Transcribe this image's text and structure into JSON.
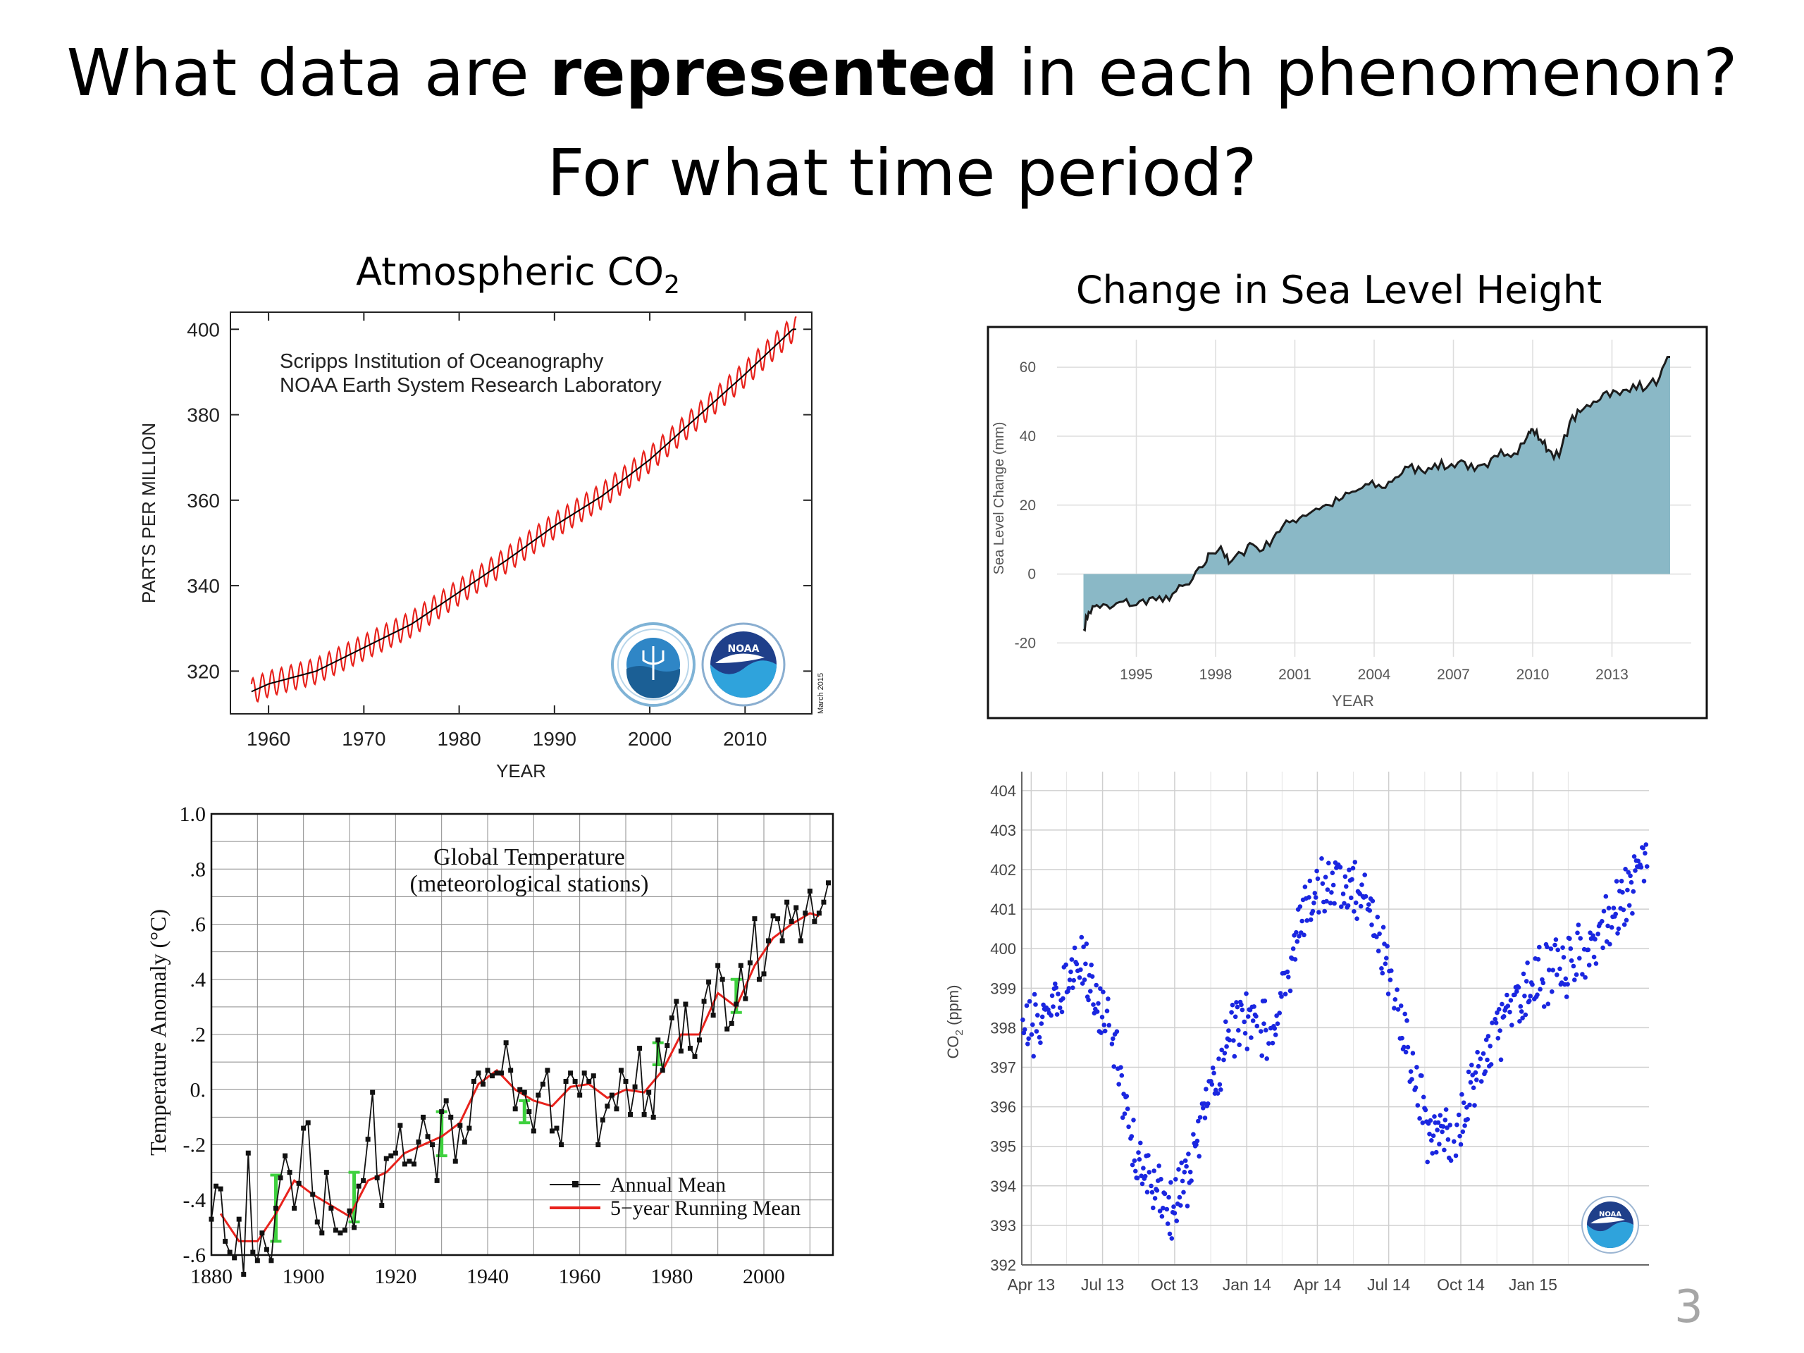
{
  "slide": {
    "title_line1_pre": "What data are ",
    "title_line1_bold": "represented",
    "title_line1_post": " in each phenomenon?",
    "title_line2": "For what time period?",
    "page_number": "3"
  },
  "chart_data": [
    {
      "id": "co2-keeling",
      "type": "line",
      "title": "Atmospheric CO",
      "title_sub": "2",
      "annotation_lines": [
        "Scripps Institution of Oceanography",
        "NOAA Earth System Research Laboratory"
      ],
      "date_stamp": "March 2015",
      "logos": [
        "scripps-seal",
        "noaa-logo"
      ],
      "xlabel": "YEAR",
      "ylabel": "PARTS PER MILLION",
      "xlim": [
        1956,
        2017
      ],
      "ylim": [
        310,
        404
      ],
      "xticks": [
        1960,
        1970,
        1980,
        1990,
        2000,
        2010
      ],
      "yticks": [
        320,
        340,
        360,
        380,
        400
      ],
      "series": [
        {
          "color": "#e8221c",
          "style": "monthly-seasonal",
          "seasonal_amplitude": 3
        },
        {
          "color": "#000000",
          "style": "annual-trend",
          "x": [
            1958,
            1960,
            1965,
            1970,
            1975,
            1980,
            1985,
            1990,
            1995,
            2000,
            2005,
            2010,
            2015
          ],
          "values": [
            315,
            317,
            320,
            325.5,
            331,
            338.5,
            346,
            354,
            361,
            369.5,
            379.5,
            389.5,
            400
          ]
        }
      ]
    },
    {
      "id": "sea-level",
      "type": "area",
      "title": "Change in Sea Level Height",
      "xlabel": "YEAR",
      "ylabel": "Sea Level Change (mm)",
      "xlim": [
        1992,
        2016
      ],
      "ylim": [
        -24,
        68
      ],
      "xticks": [
        1995,
        1998,
        2001,
        2004,
        2007,
        2010,
        2013
      ],
      "yticks": [
        -20,
        0,
        20,
        40,
        60
      ],
      "fill": "#8ab8c6",
      "line": "#1c1c1c",
      "x": [
        1993.0,
        1993.2,
        1993.5,
        1994,
        1994.5,
        1995,
        1995.5,
        1996,
        1996.5,
        1997,
        1997.5,
        1997.8,
        1998.2,
        1998.5,
        1999,
        1999.3,
        1999.8,
        2000.3,
        2000.8,
        2001.3,
        2001.8,
        2002.3,
        2002.8,
        2003.3,
        2003.8,
        2004.3,
        2004.8,
        2005.3,
        2005.8,
        2006.3,
        2006.8,
        2007.3,
        2007.8,
        2008.3,
        2008.8,
        2009.3,
        2009.8,
        2010.0,
        2010.3,
        2010.6,
        2011.0,
        2011.4,
        2011.8,
        2012.3,
        2012.8,
        2013.3,
        2013.8,
        2014.3,
        2014.8,
        2015.2
      ],
      "values": [
        -16,
        -11,
        -9,
        -10,
        -8,
        -9,
        -7,
        -8,
        -5,
        -3,
        2,
        6,
        8,
        3,
        6,
        9,
        7,
        12,
        15,
        17,
        19,
        20,
        22,
        24,
        26,
        25,
        28,
        31,
        30,
        32,
        31,
        33,
        30,
        31,
        36,
        35,
        40,
        42,
        39,
        36,
        34,
        44,
        47,
        50,
        53,
        52,
        55,
        54,
        57,
        63
      ]
    },
    {
      "id": "global-temperature",
      "type": "line",
      "title": "Global Temperature",
      "subtitle": "(meteorological stations)",
      "xlabel": "",
      "ylabel": "Temperature Anomaly (°C)",
      "xlim": [
        1880,
        2015
      ],
      "ylim": [
        -0.6,
        1.0
      ],
      "xticks": [
        1880,
        1900,
        1920,
        1940,
        1960,
        1980,
        2000
      ],
      "xtick_labels": [
        "1880",
        "1900",
        "1920",
        "1940",
        "1960",
        "1980",
        "2000"
      ],
      "yticks": [
        -0.6,
        -0.4,
        -0.2,
        0.0,
        0.2,
        0.4,
        0.6,
        0.8,
        1.0
      ],
      "ytick_labels": [
        "-.6",
        "-.4",
        "-.2",
        "0.",
        ".2",
        ".4",
        ".6",
        ".8",
        "1.0"
      ],
      "legend": [
        {
          "label": "Annual Mean",
          "color": "#000000"
        },
        {
          "label": "5−year Running Mean",
          "color": "#e8221c"
        }
      ],
      "legend_placement": "bottom-right",
      "error_bar_color": "#3ed13e",
      "error_bars": [
        {
          "x": 1894,
          "y": -0.43,
          "err": 0.12
        },
        {
          "x": 1911,
          "y": -0.39,
          "err": 0.09
        },
        {
          "x": 1930,
          "y": -0.16,
          "err": 0.08
        },
        {
          "x": 1948,
          "y": -0.08,
          "err": 0.04
        },
        {
          "x": 1977,
          "y": 0.13,
          "err": 0.04
        },
        {
          "x": 1994,
          "y": 0.34,
          "err": 0.06
        }
      ],
      "series": [
        {
          "name": "Annual Mean",
          "x": [
            1880,
            1881,
            1882,
            1883,
            1884,
            1885,
            1886,
            1887,
            1888,
            1889,
            1890,
            1891,
            1892,
            1893,
            1894,
            1895,
            1896,
            1897,
            1898,
            1899,
            1900,
            1901,
            1902,
            1903,
            1904,
            1905,
            1906,
            1907,
            1908,
            1909,
            1910,
            1911,
            1912,
            1913,
            1914,
            1915,
            1916,
            1917,
            1918,
            1919,
            1920,
            1921,
            1922,
            1923,
            1924,
            1925,
            1926,
            1927,
            1928,
            1929,
            1930,
            1931,
            1932,
            1933,
            1934,
            1935,
            1936,
            1937,
            1938,
            1939,
            1940,
            1941,
            1942,
            1943,
            1944,
            1945,
            1946,
            1947,
            1948,
            1949,
            1950,
            1951,
            1952,
            1953,
            1954,
            1955,
            1956,
            1957,
            1958,
            1959,
            1960,
            1961,
            1962,
            1963,
            1964,
            1965,
            1966,
            1967,
            1968,
            1969,
            1970,
            1971,
            1972,
            1973,
            1974,
            1975,
            1976,
            1977,
            1978,
            1979,
            1980,
            1981,
            1982,
            1983,
            1984,
            1985,
            1986,
            1987,
            1988,
            1989,
            1990,
            1991,
            1992,
            1993,
            1994,
            1995,
            1996,
            1997,
            1998,
            1999,
            2000,
            2001,
            2002,
            2003,
            2004,
            2005,
            2006,
            2007,
            2008,
            2009,
            2010,
            2011,
            2012,
            2013,
            2014
          ],
          "values": [
            -0.47,
            -0.35,
            -0.36,
            -0.55,
            -0.59,
            -0.61,
            -0.47,
            -0.67,
            -0.23,
            -0.59,
            -0.62,
            -0.52,
            -0.58,
            -0.62,
            -0.43,
            -0.32,
            -0.24,
            -0.3,
            -0.43,
            -0.34,
            -0.14,
            -0.12,
            -0.38,
            -0.48,
            -0.52,
            -0.3,
            -0.43,
            -0.51,
            -0.52,
            -0.51,
            -0.44,
            -0.5,
            -0.35,
            -0.33,
            -0.18,
            -0.01,
            -0.32,
            -0.42,
            -0.25,
            -0.24,
            -0.23,
            -0.13,
            -0.27,
            -0.26,
            -0.27,
            -0.19,
            -0.1,
            -0.17,
            -0.2,
            -0.33,
            -0.08,
            -0.04,
            -0.1,
            -0.26,
            -0.13,
            -0.19,
            -0.14,
            0.03,
            0.06,
            0.02,
            0.07,
            0.05,
            0.06,
            0.06,
            0.17,
            0.07,
            -0.07,
            0.0,
            -0.01,
            -0.08,
            -0.15,
            -0.02,
            0.02,
            0.07,
            -0.15,
            -0.14,
            -0.2,
            0.03,
            0.06,
            0.03,
            -0.02,
            0.06,
            0.03,
            0.05,
            -0.2,
            -0.11,
            -0.06,
            -0.02,
            -0.07,
            0.07,
            0.03,
            -0.09,
            0.01,
            0.15,
            -0.09,
            -0.01,
            -0.1,
            0.18,
            0.07,
            0.16,
            0.26,
            0.32,
            0.14,
            0.31,
            0.15,
            0.12,
            0.18,
            0.32,
            0.39,
            0.27,
            0.45,
            0.4,
            0.22,
            0.24,
            0.31,
            0.45,
            0.33,
            0.46,
            0.62,
            0.4,
            0.42,
            0.54,
            0.63,
            0.62,
            0.54,
            0.68,
            0.61,
            0.66,
            0.54,
            0.64,
            0.72,
            0.61,
            0.64,
            0.68,
            0.75
          ]
        },
        {
          "name": "5−year Running Mean",
          "x": [
            1882,
            1886,
            1890,
            1894,
            1898,
            1902,
            1906,
            1910,
            1914,
            1918,
            1922,
            1926,
            1930,
            1934,
            1938,
            1942,
            1946,
            1950,
            1954,
            1958,
            1962,
            1966,
            1970,
            1974,
            1978,
            1982,
            1986,
            1990,
            1994,
            1998,
            2002,
            2006,
            2010,
            2012
          ],
          "values": [
            -0.45,
            -0.55,
            -0.55,
            -0.45,
            -0.33,
            -0.38,
            -0.42,
            -0.46,
            -0.33,
            -0.3,
            -0.23,
            -0.2,
            -0.17,
            -0.12,
            0.02,
            0.07,
            0.0,
            -0.04,
            -0.06,
            0.01,
            0.02,
            -0.03,
            0.0,
            -0.01,
            0.07,
            0.2,
            0.2,
            0.35,
            0.3,
            0.45,
            0.55,
            0.6,
            0.64,
            0.63
          ]
        }
      ]
    },
    {
      "id": "co2-daily",
      "type": "scatter",
      "xlabel": "",
      "ylabel": "CO2 (ppm)",
      "ylabel_main": "CO",
      "ylabel_sub": "2",
      "ylabel_post": " (ppm)",
      "xlim_days": [
        0,
        800
      ],
      "ylim": [
        392,
        404.3
      ],
      "xtick_days": [
        12,
        103,
        195,
        287,
        377,
        468,
        560,
        652
      ],
      "xtick_labels": [
        "Apr 13",
        "Jul 13",
        "Oct 13",
        "Jan 14",
        "Apr 14",
        "Jul 14",
        "Oct 14",
        "Jan 15"
      ],
      "yticks": [
        392,
        393,
        394,
        395,
        396,
        397,
        398,
        399,
        400,
        401,
        402,
        403,
        404
      ],
      "color": "#1a26e0",
      "logo": "noaa-logo",
      "trend_points_days": [
        0,
        40,
        70,
        110,
        150,
        185,
        210,
        240,
        270,
        290,
        320,
        360,
        390,
        420,
        455,
        490,
        520,
        555,
        580,
        620,
        650,
        690,
        720,
        770,
        790
      ],
      "trend_points_values": [
        398.0,
        398.4,
        399.8,
        398.0,
        394.6,
        393.4,
        394.0,
        396.3,
        398.0,
        398.2,
        398.0,
        401.0,
        401.9,
        401.8,
        400.5,
        397.7,
        395.2,
        395.3,
        396.8,
        398.3,
        399.2,
        399.5,
        399.9,
        401.3,
        401.9
      ]
    }
  ]
}
